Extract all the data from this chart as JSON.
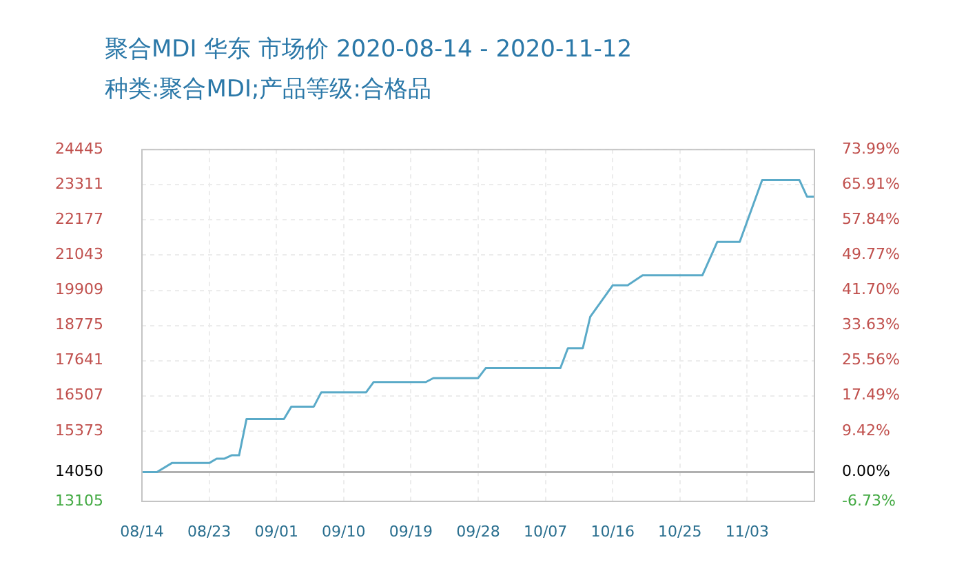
{
  "chart_data": {
    "type": "line",
    "title": "聚合MDI 华东 市场价 2020-08-14 - 2020-11-12",
    "subtitle": "种类:聚合MDI;产品等级:合格品",
    "x": [
      "2020-08-14",
      "2020-08-16",
      "2020-08-18",
      "2020-08-23",
      "2020-08-24",
      "2020-08-25",
      "2020-08-26",
      "2020-08-27",
      "2020-08-28",
      "2020-09-02",
      "2020-09-03",
      "2020-09-06",
      "2020-09-07",
      "2020-09-13",
      "2020-09-14",
      "2020-09-21",
      "2020-09-22",
      "2020-09-28",
      "2020-09-29",
      "2020-10-09",
      "2020-10-10",
      "2020-10-12",
      "2020-10-13",
      "2020-10-16",
      "2020-10-18",
      "2020-10-20",
      "2020-10-28",
      "2020-10-30",
      "2020-11-02",
      "2020-11-05",
      "2020-11-10",
      "2020-11-11",
      "2020-11-12"
    ],
    "series": [
      {
        "color": "#5aaac8",
        "values": [
          14050,
          14050,
          14340,
          14340,
          14480,
          14480,
          14590,
          14590,
          15760,
          15760,
          16160,
          16160,
          16620,
          16620,
          16950,
          16950,
          17080,
          17080,
          17400,
          17400,
          18040,
          18040,
          19060,
          20070,
          20070,
          20390,
          20390,
          21470,
          21470,
          23460,
          23460,
          22930,
          22930
        ]
      }
    ],
    "xlim": [
      "2020-08-14",
      "2020-11-12"
    ],
    "xticks": [
      {
        "value": "2020-08-14",
        "label": "08/14"
      },
      {
        "value": "2020-08-23",
        "label": "08/23"
      },
      {
        "value": "2020-09-01",
        "label": "09/01"
      },
      {
        "value": "2020-09-10",
        "label": "09/10"
      },
      {
        "value": "2020-09-19",
        "label": "09/19"
      },
      {
        "value": "2020-09-28",
        "label": "09/28"
      },
      {
        "value": "2020-10-07",
        "label": "10/07"
      },
      {
        "value": "2020-10-16",
        "label": "10/16"
      },
      {
        "value": "2020-10-25",
        "label": "10/25"
      },
      {
        "value": "2020-11-03",
        "label": "11/03"
      }
    ],
    "ylim": [
      13105,
      24445
    ],
    "yticks": [
      13105,
      14050,
      15373,
      16507,
      17641,
      18775,
      19909,
      21043,
      22177,
      23311,
      24445
    ],
    "y2lim": [
      -6.73,
      73.99
    ],
    "y2ticks": [
      {
        "value": -6.73,
        "label": "-6.73%"
      },
      {
        "value": 0,
        "label": "0.00%"
      },
      {
        "value": 9.42,
        "label": "9.42%"
      },
      {
        "value": 17.49,
        "label": "17.49%"
      },
      {
        "value": 25.56,
        "label": "25.56%"
      },
      {
        "value": 33.63,
        "label": "33.63%"
      },
      {
        "value": 41.7,
        "label": "41.70%"
      },
      {
        "value": 49.77,
        "label": "49.77%"
      },
      {
        "value": 57.84,
        "label": "57.84%"
      },
      {
        "value": 65.91,
        "label": "65.91%"
      },
      {
        "value": 73.99,
        "label": "73.99%"
      }
    ],
    "ref_lines": [
      {
        "axis": "y",
        "value": 14050,
        "color": "#b0b0b0"
      }
    ],
    "grid": true,
    "marker": "none",
    "line_style": "solid",
    "legend": false
  }
}
